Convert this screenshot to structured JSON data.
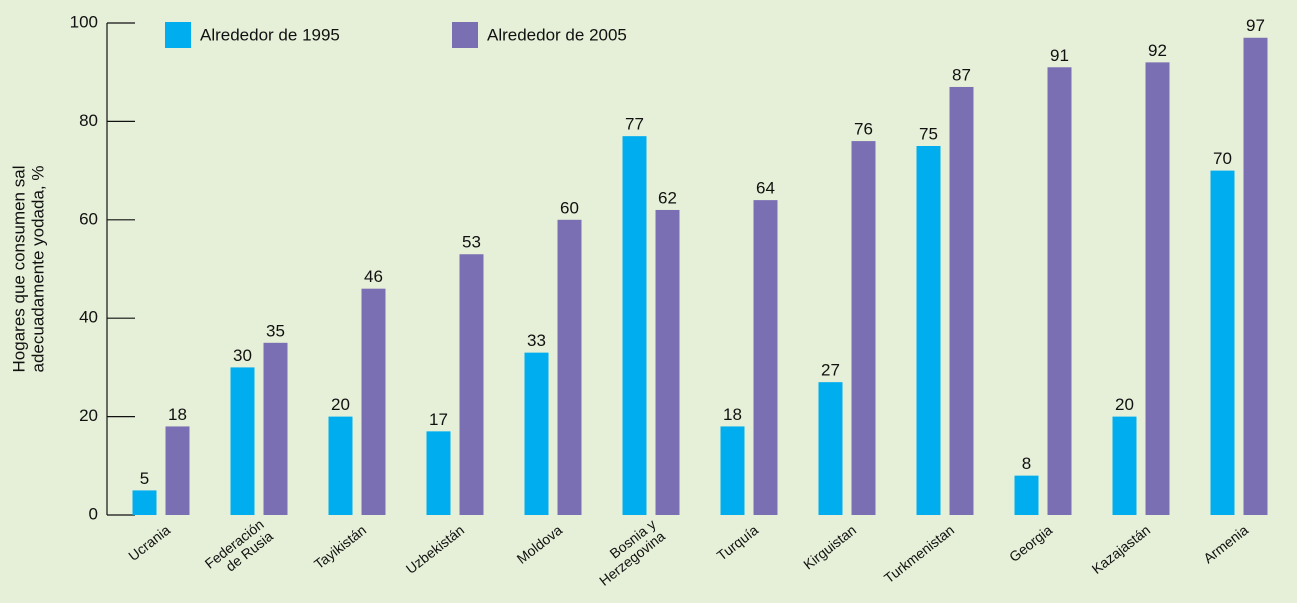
{
  "chart_data": {
    "type": "bar",
    "ylabel": "Hogares que consumen sal\nadecuadamente yodada, %",
    "categories": [
      "Ucrania",
      "Federación\nde Rusia",
      "Tayikistán",
      "Uzbekistán",
      "Moldova",
      "Bosnia y\nHerzegovina",
      "Turquía",
      "Kirguistan",
      "Turkmenistan",
      "Georgia",
      "Kazajastán",
      "Armenia"
    ],
    "series": [
      {
        "name": "Alrededor de 1995",
        "color": "#00aeef",
        "values": [
          5,
          30,
          20,
          17,
          33,
          77,
          18,
          27,
          75,
          8,
          20,
          70
        ]
      },
      {
        "name": "Alrededor de 2005",
        "color": "#7b6fb4",
        "values": [
          18,
          35,
          46,
          53,
          60,
          62,
          64,
          76,
          87,
          91,
          92,
          97
        ]
      }
    ],
    "ylim": [
      0,
      100
    ],
    "yticks": [
      0,
      20,
      40,
      60,
      80,
      100
    ]
  }
}
